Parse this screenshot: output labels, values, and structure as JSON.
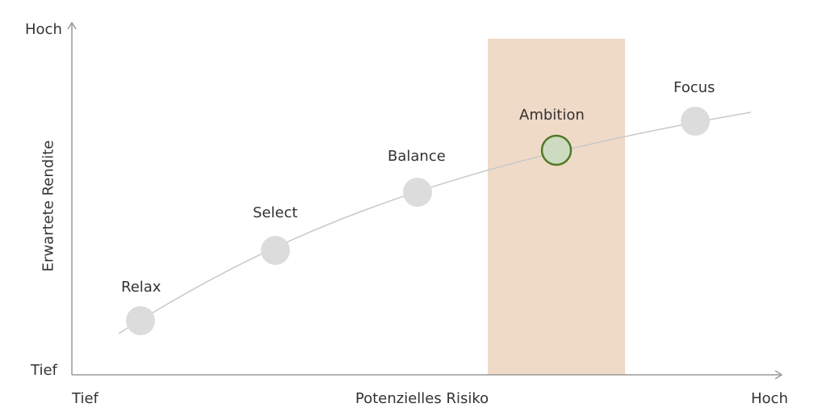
{
  "y_axis": {
    "top_label": "Hoch",
    "bottom_label": "Tief",
    "title": "Erwartete Rendite"
  },
  "x_axis": {
    "left_label": "Tief",
    "right_label": "Hoch",
    "title": "Potenzielles Risiko"
  },
  "profiles": [
    {
      "name": "Relax",
      "selected": false
    },
    {
      "name": "Select",
      "selected": false
    },
    {
      "name": "Balance",
      "selected": false
    },
    {
      "name": "Ambition",
      "selected": true
    },
    {
      "name": "Focus",
      "selected": false
    }
  ],
  "colors": {
    "highlight_band": "#efdac7",
    "point_default": "#dcdcdc",
    "point_selected_fill": "#cddbc0",
    "point_selected_stroke": "#4f7a25",
    "curve": "#c8c8c8",
    "axis": "#9a9a9a"
  }
}
